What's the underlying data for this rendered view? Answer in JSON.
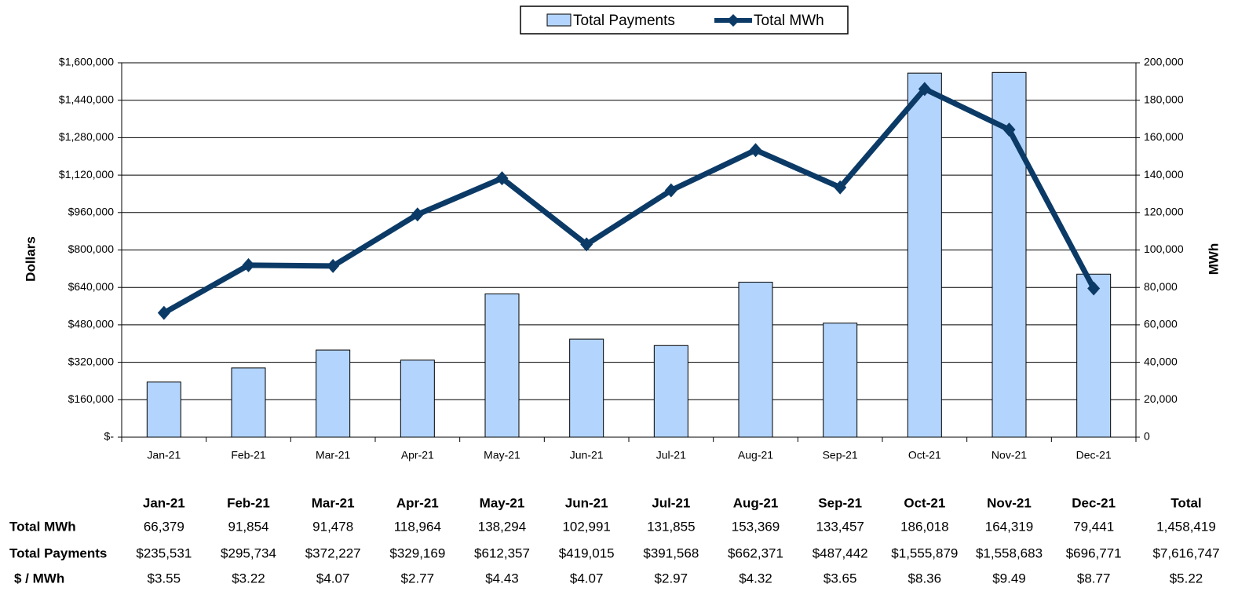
{
  "chart_data": {
    "type": "bar",
    "y_label": "Dollars",
    "y2_label": "MWh",
    "categories": [
      "Jan-21",
      "Feb-21",
      "Mar-21",
      "Apr-21",
      "May-21",
      "Jun-21",
      "Jul-21",
      "Aug-21",
      "Sep-21",
      "Oct-21",
      "Nov-21",
      "Dec-21"
    ],
    "series": [
      {
        "name": "Total Payments",
        "type": "bar",
        "color": "#b3d4fc",
        "values": [
          235531,
          295734,
          372227,
          329169,
          612357,
          419015,
          391568,
          662371,
          487442,
          1555879,
          1558683,
          696771
        ],
        "value_labels": [
          "$235,531",
          "$295,734",
          "$372,227",
          "$329,169",
          "$612,357",
          "$419,015",
          "$391,568",
          "$662,371",
          "$487,442",
          "$1,555,879",
          "$1,558,683",
          "$696,771"
        ]
      },
      {
        "name": "Total MWh",
        "type": "line",
        "axis": "y2",
        "color": "#0b3a66",
        "values": [
          66379,
          91854,
          91478,
          118964,
          138294,
          102991,
          131855,
          153369,
          133457,
          186018,
          164319,
          79441
        ],
        "value_labels": [
          "66,379",
          "91,854",
          "91,478",
          "118,964",
          "138,294",
          "102,991",
          "131,855",
          "153,369",
          "133,457",
          "186,018",
          "164,319",
          "79,441"
        ]
      }
    ],
    "ylim": [
      0,
      1600000
    ],
    "yticks": [
      {
        "value": 0,
        "label": "$-"
      },
      {
        "value": 160000,
        "label": "$160,000"
      },
      {
        "value": 320000,
        "label": "$320,000"
      },
      {
        "value": 480000,
        "label": "$480,000"
      },
      {
        "value": 640000,
        "label": "$640,000"
      },
      {
        "value": 800000,
        "label": "$800,000"
      },
      {
        "value": 960000,
        "label": "$960,000"
      },
      {
        "value": 1120000,
        "label": "$1,120,000"
      },
      {
        "value": 1280000,
        "label": "$1,280,000"
      },
      {
        "value": 1440000,
        "label": "$1,440,000"
      },
      {
        "value": 1600000,
        "label": "$1,600,000"
      }
    ],
    "y2lim": [
      0,
      200000
    ],
    "y2ticks": [
      0,
      {
        "value": 20000,
        "label": "20,000"
      },
      {
        "value": 40000,
        "label": "40,000"
      },
      {
        "value": 60000,
        "label": "60,000"
      },
      {
        "value": 80000,
        "label": "80,000"
      },
      {
        "value": 100000,
        "label": "100,000"
      },
      {
        "value": 120000,
        "label": "120,000"
      },
      {
        "value": 140000,
        "label": "140,000"
      },
      {
        "value": 160000,
        "label": "160,000"
      },
      {
        "value": 180000,
        "label": "180,000"
      },
      {
        "value": 200000,
        "label": "200,000"
      }
    ],
    "grid": true,
    "legend": "top"
  },
  "table": {
    "total_header": "Total",
    "rate_label": "$ / MWh",
    "rate": [
      "$3.55",
      "$3.22",
      "$4.07",
      "$2.77",
      "$4.43",
      "$4.07",
      "$2.97",
      "$4.32",
      "$3.65",
      "$8.36",
      "$9.49",
      "$8.77"
    ],
    "totals": [
      "1,458,419",
      "$7,616,747",
      "$5.22"
    ]
  }
}
